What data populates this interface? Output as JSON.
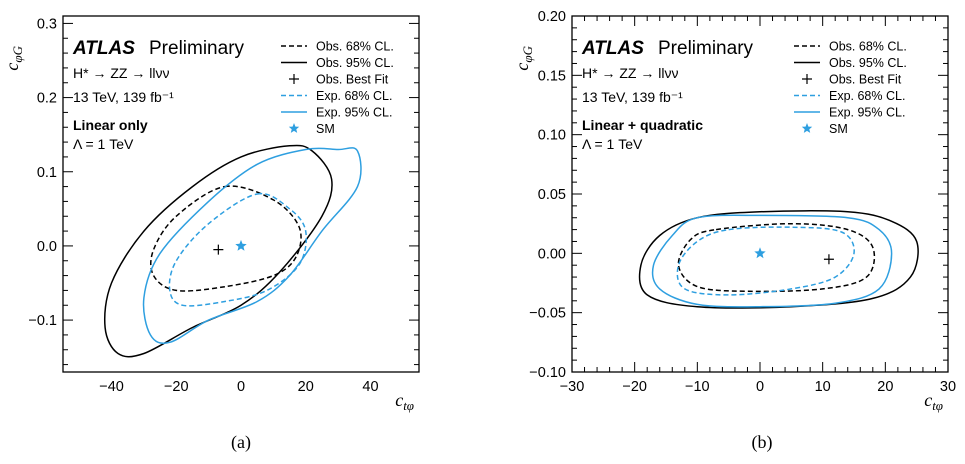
{
  "chart_data": [
    {
      "type": "contour",
      "caption": "(a)",
      "xlabel": "c_{tφ}",
      "ylabel": "c_{φG}",
      "xlim": [
        -55,
        55
      ],
      "ylim": [
        -0.17,
        0.31
      ],
      "xticks": [
        -40,
        -20,
        0,
        20,
        40
      ],
      "xtick_labels": [
        "−40",
        "−20",
        "0",
        "20",
        "40"
      ],
      "yticks": [
        -0.1,
        0.0,
        0.1,
        0.2,
        0.3
      ],
      "ytick_labels": [
        "−0.1",
        "0.0",
        "0.1",
        "0.2",
        "0.3"
      ],
      "atlas_label": "ATLAS",
      "atlas_sublabel": "Preliminary",
      "info_lines": [
        "H* → ZZ → llνν",
        "13 TeV, 139 fb⁻¹"
      ],
      "scenario_label": "Linear only",
      "lambda_label": "Λ = 1 TeV",
      "legend": [
        "Obs. 68% CL.",
        "Obs. 95% CL.",
        "Obs. Best Fit",
        "Exp. 68% CL.",
        "Exp. 95% CL.",
        "SM"
      ],
      "contours": [
        {
          "name": "Obs. 68% CL.",
          "color": "#000000",
          "dashed": true,
          "points": [
            [
              -5,
              0.08
            ],
            [
              10,
              0.062
            ],
            [
              18,
              0.025
            ],
            [
              17,
              -0.015
            ],
            [
              10,
              -0.04
            ],
            [
              -5,
              -0.055
            ],
            [
              -20,
              -0.06
            ],
            [
              -27,
              -0.04
            ],
            [
              -27,
              -0.005
            ],
            [
              -20,
              0.04
            ]
          ]
        },
        {
          "name": "Obs. 95% CL.",
          "color": "#000000",
          "dashed": false,
          "points": [
            [
              15,
              0.135
            ],
            [
              22,
              0.128
            ],
            [
              28,
              0.09
            ],
            [
              25,
              0.04
            ],
            [
              12,
              -0.035
            ],
            [
              0,
              -0.08
            ],
            [
              -15,
              -0.11
            ],
            [
              -30,
              -0.145
            ],
            [
              -38,
              -0.145
            ],
            [
              -42,
              -0.11
            ],
            [
              -40,
              -0.05
            ],
            [
              -30,
              0.02
            ],
            [
              -15,
              0.08
            ],
            [
              0,
              0.12
            ]
          ]
        },
        {
          "name": "Exp. 68% CL.",
          "color": "#2e9fe0",
          "dashed": true,
          "points": [
            [
              5,
              0.07
            ],
            [
              15,
              0.05
            ],
            [
              20,
              0.02
            ],
            [
              18,
              -0.025
            ],
            [
              8,
              -0.06
            ],
            [
              -5,
              -0.075
            ],
            [
              -18,
              -0.08
            ],
            [
              -22,
              -0.06
            ],
            [
              -20,
              -0.02
            ],
            [
              -10,
              0.03
            ]
          ]
        },
        {
          "name": "Exp. 95% CL.",
          "color": "#2e9fe0",
          "dashed": false,
          "points": [
            [
              30,
              0.13
            ],
            [
              36,
              0.128
            ],
            [
              36,
              0.08
            ],
            [
              25,
              0.02
            ],
            [
              15,
              -0.04
            ],
            [
              5,
              -0.075
            ],
            [
              -10,
              -0.1
            ],
            [
              -22,
              -0.13
            ],
            [
              -28,
              -0.12
            ],
            [
              -30,
              -0.07
            ],
            [
              -25,
              -0.01
            ],
            [
              -10,
              0.06
            ],
            [
              5,
              0.11
            ],
            [
              20,
              0.13
            ]
          ]
        }
      ],
      "best_fit": [
        -7,
        -0.005
      ],
      "sm": [
        0,
        0
      ]
    },
    {
      "type": "contour",
      "caption": "(b)",
      "xlabel": "c_{tφ}",
      "ylabel": "c_{φG}",
      "xlim": [
        -30,
        30
      ],
      "ylim": [
        -0.1,
        0.2
      ],
      "xticks": [
        -30,
        -20,
        -10,
        0,
        10,
        20,
        30
      ],
      "xtick_labels": [
        "−30",
        "−20",
        "−10",
        "0",
        "10",
        "20",
        "30"
      ],
      "yticks": [
        -0.1,
        -0.05,
        0.0,
        0.05,
        0.1,
        0.15,
        0.2
      ],
      "ytick_labels": [
        "−0.10",
        "−0.05",
        "0.00",
        "0.05",
        "0.10",
        "0.15",
        "0.20"
      ],
      "atlas_label": "ATLAS",
      "atlas_sublabel": "Preliminary",
      "info_lines": [
        "H* → ZZ → llνν",
        "13 TeV, 139 fb⁻¹"
      ],
      "scenario_label": "Linear + quadratic",
      "lambda_label": "Λ = 1 TeV",
      "legend": [
        "Obs. 68% CL.",
        "Obs. 95% CL.",
        "Obs. Best Fit",
        "Exp. 68% CL.",
        "Exp. 95% CL.",
        "SM"
      ],
      "contours": [
        {
          "name": "Obs. 68% CL.",
          "color": "#000000",
          "dashed": true,
          "points": [
            [
              -7,
              0.02
            ],
            [
              5,
              0.025
            ],
            [
              14,
              0.02
            ],
            [
              18,
              0.005
            ],
            [
              17,
              -0.02
            ],
            [
              10,
              -0.03
            ],
            [
              -2,
              -0.032
            ],
            [
              -10,
              -0.028
            ],
            [
              -13,
              -0.01
            ],
            [
              -11,
              0.012
            ]
          ]
        },
        {
          "name": "Obs. 95% CL.",
          "color": "#000000",
          "dashed": false,
          "points": [
            [
              -10,
              0.03
            ],
            [
              0,
              0.035
            ],
            [
              14,
              0.035
            ],
            [
              21,
              0.027
            ],
            [
              25,
              0.01
            ],
            [
              24,
              -0.02
            ],
            [
              18,
              -0.038
            ],
            [
              5,
              -0.045
            ],
            [
              -10,
              -0.045
            ],
            [
              -18,
              -0.035
            ],
            [
              -19,
              -0.01
            ],
            [
              -16,
              0.015
            ]
          ]
        },
        {
          "name": "Exp. 68% CL.",
          "color": "#2e9fe0",
          "dashed": true,
          "points": [
            [
              -5,
              0.02
            ],
            [
              5,
              0.022
            ],
            [
              13,
              0.018
            ],
            [
              15,
              0.0
            ],
            [
              12,
              -0.02
            ],
            [
              5,
              -0.03
            ],
            [
              -5,
              -0.035
            ],
            [
              -12,
              -0.03
            ],
            [
              -13,
              -0.01
            ],
            [
              -10,
              0.01
            ]
          ]
        },
        {
          "name": "Exp. 95% CL.",
          "color": "#2e9fe0",
          "dashed": false,
          "points": [
            [
              -10,
              0.03
            ],
            [
              0,
              0.032
            ],
            [
              14,
              0.03
            ],
            [
              19,
              0.02
            ],
            [
              21,
              0.0
            ],
            [
              19,
              -0.03
            ],
            [
              12,
              -0.042
            ],
            [
              0,
              -0.045
            ],
            [
              -10,
              -0.043
            ],
            [
              -16,
              -0.03
            ],
            [
              -17,
              -0.01
            ],
            [
              -14,
              0.015
            ]
          ]
        }
      ],
      "best_fit": [
        11,
        -0.005
      ],
      "sm": [
        0,
        0
      ]
    }
  ]
}
